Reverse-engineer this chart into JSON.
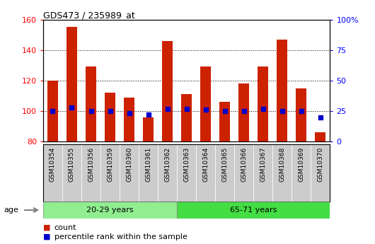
{
  "title": "GDS473 / 235989_at",
  "samples": [
    "GSM10354",
    "GSM10355",
    "GSM10356",
    "GSM10359",
    "GSM10360",
    "GSM10361",
    "GSM10362",
    "GSM10363",
    "GSM10364",
    "GSM10365",
    "GSM10366",
    "GSM10367",
    "GSM10368",
    "GSM10369",
    "GSM10370"
  ],
  "counts": [
    120,
    155,
    129,
    112,
    109,
    96,
    146,
    111,
    129,
    106,
    118,
    129,
    147,
    115,
    86
  ],
  "percentiles": [
    25,
    28,
    25,
    25,
    23,
    22,
    27,
    27,
    26,
    25,
    25,
    27,
    25,
    25,
    20
  ],
  "ylim": [
    80,
    160
  ],
  "y2lim": [
    0,
    100
  ],
  "yticks": [
    80,
    100,
    120,
    140,
    160
  ],
  "y2ticks": [
    0,
    25,
    50,
    75,
    100
  ],
  "y2ticklabels": [
    "0",
    "25",
    "50",
    "75",
    "100%"
  ],
  "groups": [
    {
      "label": "20-29 years",
      "start": 0,
      "end": 7,
      "color": "#90EE90"
    },
    {
      "label": "65-71 years",
      "start": 7,
      "end": 15,
      "color": "#44DD44"
    }
  ],
  "bar_color": "#CC2200",
  "percentile_color": "#0000CC",
  "bar_width": 0.55,
  "plot_bg_color": "#ffffff",
  "xtick_bg_color": "#cccccc",
  "age_label": "age",
  "legend_count": "count",
  "legend_percentile": "percentile rank within the sample"
}
